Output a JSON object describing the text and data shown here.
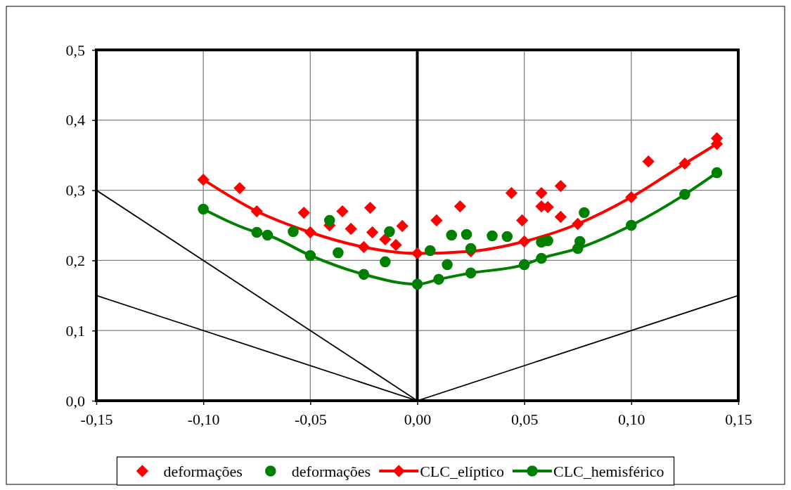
{
  "chart_data": {
    "type": "scatter",
    "xlim": [
      -0.15,
      0.15
    ],
    "xticks": [
      {
        "value": -0.15,
        "label": "-0,15"
      },
      {
        "value": -0.1,
        "label": "-0,10"
      },
      {
        "value": -0.05,
        "label": "-0,05"
      },
      {
        "value": 0,
        "label": "0,00"
      },
      {
        "value": 0.05,
        "label": "0,05"
      },
      {
        "value": 0.1,
        "label": "0,10"
      },
      {
        "value": 0.15,
        "label": "0,15"
      }
    ],
    "ylim": [
      0,
      0.5
    ],
    "yticks": [
      {
        "value": 0,
        "label": "0,0"
      },
      {
        "value": 0.1,
        "label": "0,1"
      },
      {
        "value": 0.2,
        "label": "0,2"
      },
      {
        "value": 0.3,
        "label": "0,3"
      },
      {
        "value": 0.4,
        "label": "0,4"
      },
      {
        "value": 0.5,
        "label": "0,5"
      }
    ],
    "grid": true,
    "legend": "bottom",
    "ref_lines": [
      {
        "axis": "x",
        "value": 0,
        "color": "#000000"
      }
    ],
    "series": [
      {
        "type": "line",
        "color": "#000000",
        "marker": "none",
        "x": [
          -0.15,
          0
        ],
        "values": [
          0.3,
          0
        ]
      },
      {
        "type": "line",
        "color": "#000000",
        "marker": "none",
        "x": [
          -0.15,
          0
        ],
        "values": [
          0.15,
          0
        ]
      },
      {
        "type": "line",
        "color": "#000000",
        "marker": "none",
        "x": [
          0,
          0.15
        ],
        "values": [
          0,
          0.15
        ]
      },
      {
        "name": "deformações",
        "type": "scatter",
        "color": "#ff0000",
        "marker": "diamond",
        "x": [
          -0.083,
          -0.053,
          -0.035,
          -0.022,
          -0.041,
          -0.031,
          -0.021,
          -0.007,
          -0.015,
          -0.01,
          0.009,
          0.02,
          0.044,
          0.049,
          0.058,
          0.058,
          0.061,
          0.067,
          0.067,
          0.108,
          0.14
        ],
        "values": [
          0.303,
          0.268,
          0.27,
          0.275,
          0.25,
          0.245,
          0.24,
          0.249,
          0.23,
          0.222,
          0.257,
          0.277,
          0.296,
          0.257,
          0.296,
          0.277,
          0.276,
          0.306,
          0.262,
          0.341,
          0.374
        ]
      },
      {
        "name": "deformações",
        "type": "scatter",
        "color": "#008000",
        "marker": "circle",
        "x": [
          -0.058,
          -0.041,
          -0.037,
          -0.015,
          -0.013,
          0.006,
          0.014,
          0.016,
          0.023,
          0.025,
          0.035,
          0.042,
          0.058,
          0.061,
          0.078,
          0.076
        ],
        "values": [
          0.241,
          0.257,
          0.211,
          0.198,
          0.241,
          0.214,
          0.194,
          0.236,
          0.237,
          0.217,
          0.235,
          0.234,
          0.226,
          0.228,
          0.268,
          0.227
        ]
      },
      {
        "name": "CLC_elíptico",
        "type": "line",
        "color": "#ff0000",
        "marker": "diamond",
        "x": [
          -0.1,
          -0.075,
          -0.05,
          -0.025,
          0,
          0.025,
          0.05,
          0.075,
          0.1,
          0.125,
          0.14
        ],
        "values": [
          0.315,
          0.27,
          0.24,
          0.219,
          0.21,
          0.213,
          0.227,
          0.252,
          0.29,
          0.338,
          0.366
        ]
      },
      {
        "name": "CLC_hemisférico",
        "type": "line",
        "color": "#008000",
        "marker": "circle",
        "x": [
          -0.1,
          -0.075,
          -0.07,
          -0.05,
          -0.025,
          0,
          0.01,
          0.025,
          0.05,
          0.058,
          0.075,
          0.1,
          0.125,
          0.14
        ],
        "values": [
          0.273,
          0.24,
          0.236,
          0.207,
          0.18,
          0.166,
          0.173,
          0.182,
          0.194,
          0.203,
          0.217,
          0.25,
          0.294,
          0.325
        ]
      }
    ]
  }
}
